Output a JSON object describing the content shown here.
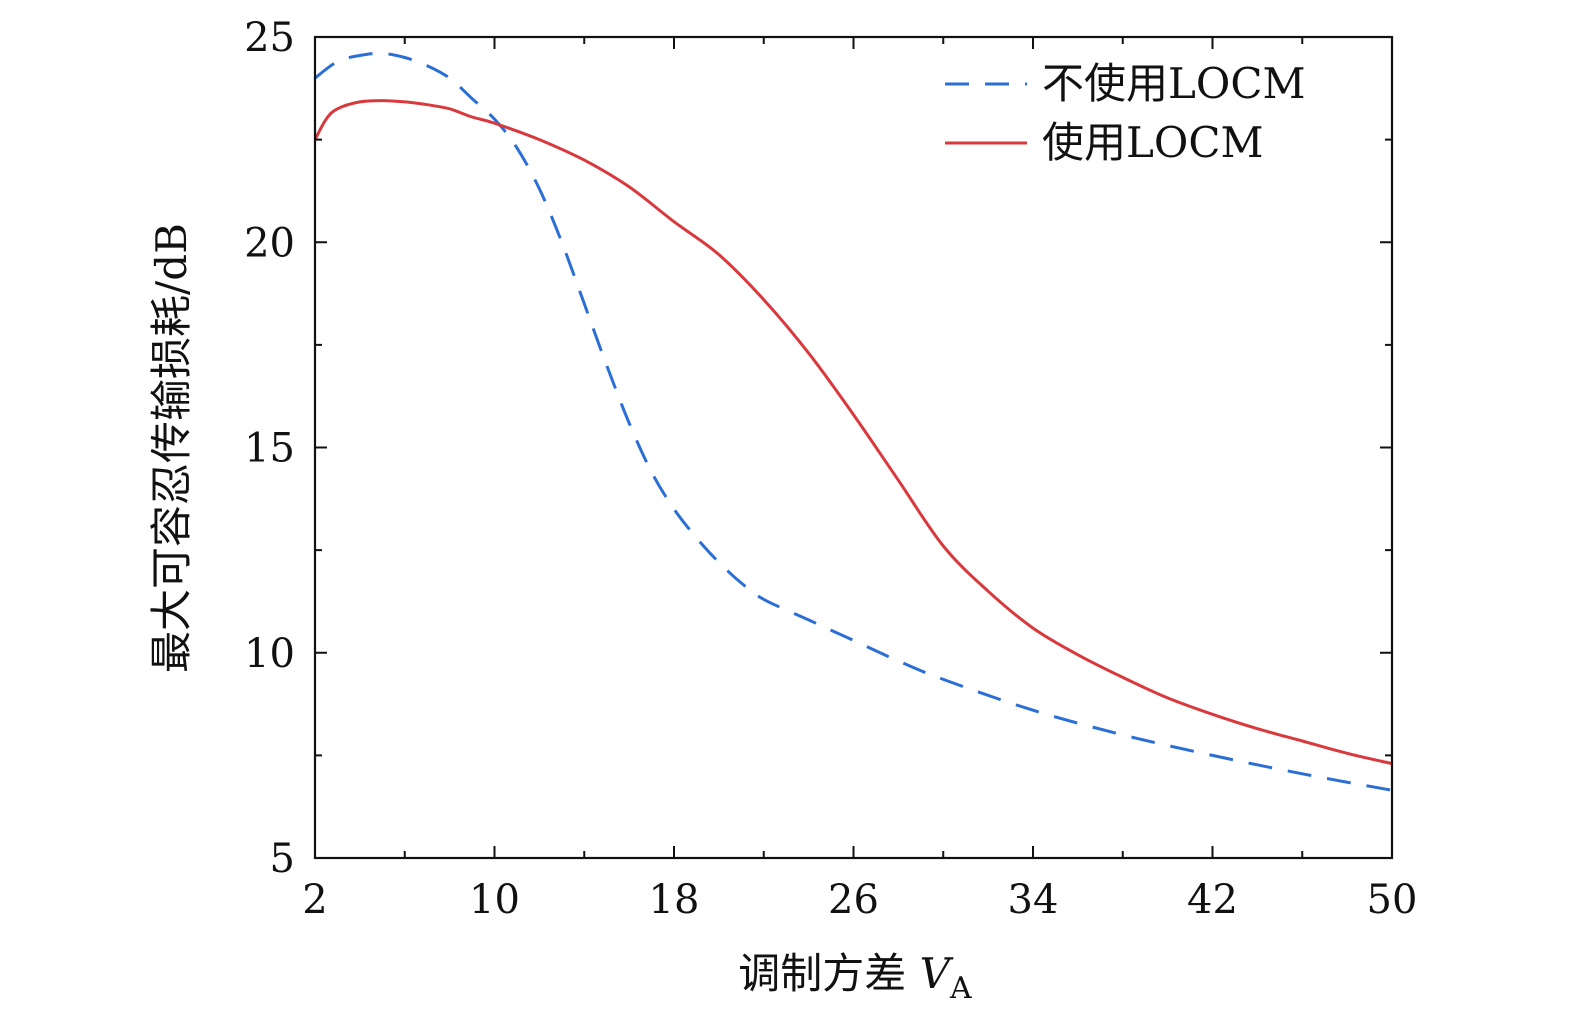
{
  "chart_data": {
    "type": "line",
    "title": "",
    "xlabel": "调制方差",
    "xlabel_var": "V",
    "xlabel_sub": "A",
    "ylabel": "最大可容忍传输损耗/dB",
    "xlim": [
      2,
      50
    ],
    "ylim": [
      5,
      25
    ],
    "x_ticks": [
      2,
      10,
      18,
      26,
      34,
      42,
      50
    ],
    "y_ticks": [
      5,
      10,
      15,
      20,
      25
    ],
    "x_minor_ticks": [
      6,
      14,
      22,
      30,
      38,
      46
    ],
    "y_minor_ticks": [
      7.5,
      12.5,
      17.5,
      22.5
    ],
    "grid": false,
    "legend_position": "top-right",
    "series": [
      {
        "name": "不使用LOCM",
        "style": "dashed",
        "color": "#2b6fd6",
        "x": [
          2,
          3,
          4,
          5,
          6,
          7,
          8,
          9,
          10,
          11,
          12,
          13,
          14,
          15,
          16,
          17,
          18,
          19,
          20,
          21,
          22,
          24,
          26,
          28,
          30,
          34,
          38,
          42,
          46,
          50
        ],
        "y": [
          24.0,
          24.4,
          24.55,
          24.6,
          24.5,
          24.3,
          24.0,
          23.5,
          23.0,
          22.3,
          21.3,
          20.0,
          18.5,
          17.0,
          15.6,
          14.4,
          13.5,
          12.8,
          12.2,
          11.7,
          11.3,
          10.8,
          10.3,
          9.8,
          9.35,
          8.6,
          8.0,
          7.5,
          7.05,
          6.65
        ]
      },
      {
        "name": "使用LOCM",
        "style": "solid",
        "color": "#d9393c",
        "x": [
          2,
          2.5,
          3,
          4,
          5,
          6,
          7,
          8,
          9,
          10,
          12,
          14,
          16,
          18,
          20,
          22,
          24,
          26,
          28,
          30,
          32,
          34,
          36,
          38,
          40,
          42,
          44,
          46,
          48,
          50
        ],
        "y": [
          22.5,
          23.0,
          23.25,
          23.42,
          23.45,
          23.42,
          23.35,
          23.25,
          23.05,
          22.9,
          22.5,
          22.0,
          21.35,
          20.5,
          19.7,
          18.6,
          17.3,
          15.8,
          14.2,
          12.6,
          11.5,
          10.6,
          9.95,
          9.4,
          8.9,
          8.5,
          8.15,
          7.85,
          7.55,
          7.3
        ]
      }
    ]
  }
}
